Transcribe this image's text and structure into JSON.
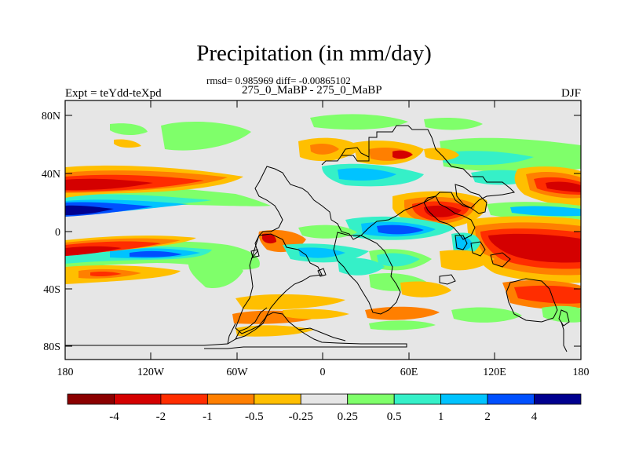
{
  "figure": {
    "title": "Precipitation (in mm/day)",
    "stats": "rmsd= 0.985969 diff= -0.00865102",
    "cases": "275_0_MaBP - 275_0_MaBP",
    "experiment": "Expt = teYdd-teXpd",
    "season": "DJF"
  },
  "axes": {
    "lat_ticks": [
      "80N",
      "40N",
      "0",
      "40S",
      "80S"
    ],
    "lon_ticks": [
      "180",
      "120W",
      "60W",
      "0",
      "60E",
      "120E",
      "180"
    ]
  },
  "colorbar": {
    "labels": [
      "-4",
      "-2",
      "-1",
      "-0.5",
      "-0.25",
      "0.25",
      "0.5",
      "1",
      "2",
      "4"
    ],
    "colors": [
      "#8b0000",
      "#d40000",
      "#ff2d00",
      "#ff7f00",
      "#ffbf00",
      "#e6e6e6",
      "#7fff6a",
      "#35f0c8",
      "#00c3ff",
      "#0050ff",
      "#00008f"
    ]
  }
}
